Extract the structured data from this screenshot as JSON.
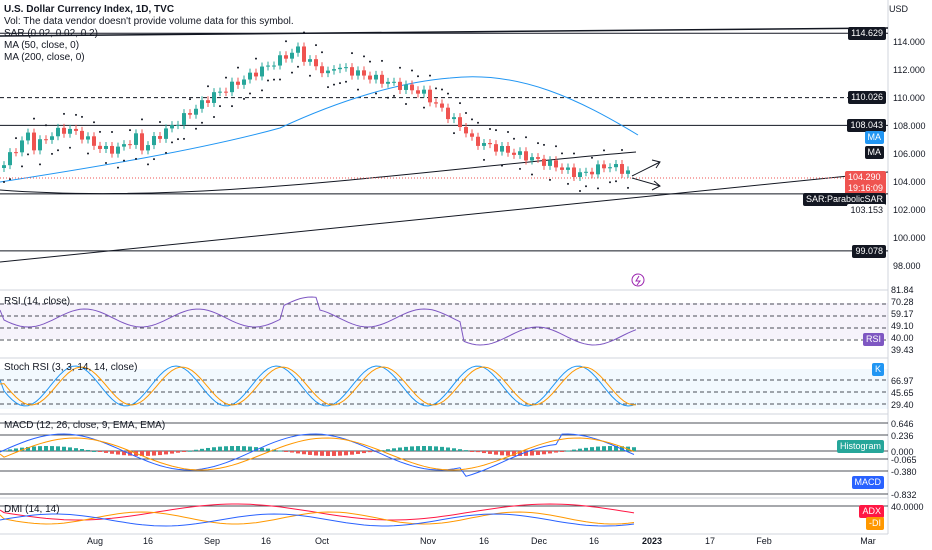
{
  "header": {
    "title": "U.S. Dollar Currency Index, 1D, TVC",
    "vol_note": "Vol: The data vendor doesn't provide volume data for this symbol.",
    "sar_label": "SAR (0.02, 0.02, 0.2)",
    "ma50_label": "MA (50, close, 0)",
    "ma200_label": "MA (200, close, 0)",
    "currency": "USD"
  },
  "price_axis": {
    "ticks": [
      "114.000",
      "112.000",
      "110.000",
      "108.000",
      "106.000",
      "104.000",
      "102.000",
      "100.000",
      "98.000"
    ],
    "marked": [
      {
        "name": "line-114629",
        "text": "114.629"
      },
      {
        "name": "line-110026",
        "text": "110.026"
      },
      {
        "name": "line-108043",
        "text": "108.043"
      },
      {
        "name": "line-103153",
        "text": "103.153"
      },
      {
        "name": "line-99078",
        "text": "99.078"
      }
    ],
    "last_price": "104.290",
    "countdown": "19:16:09",
    "ma_tag": "MA",
    "ma_tag_blue": "MA",
    "sar_tag": "SAR:ParabolicSAR"
  },
  "rsi": {
    "label": "RSI (14, close)",
    "levels": [
      "81.84",
      "70.28",
      "59.17",
      "49.10",
      "40.00",
      "39.43"
    ],
    "tag": "RSI"
  },
  "stoch": {
    "label": "Stoch RSI (3, 3, 14, 14, close)",
    "levels": [
      "66.97",
      "45.65",
      "29.40"
    ],
    "tag": "K"
  },
  "macd": {
    "label": "MACD (12, 26, close, 9, EMA, EMA)",
    "levels": [
      "0.646",
      "0.236",
      "0.000",
      "-0.065",
      "-0.380",
      "-0.832"
    ],
    "histogram_tag": "Histogram",
    "macd_tag": "MACD"
  },
  "dmi": {
    "label": "DMI (14, 14)",
    "level": "40.0000",
    "adx_tag": "ADX",
    "di_tag": "-DI"
  },
  "time_axis": [
    "Aug",
    "16",
    "Sep",
    "16",
    "Oct",
    "Nov",
    "16",
    "Dec",
    "16",
    "2023",
    "17",
    "Feb",
    "Mar"
  ],
  "colors": {
    "up": "#26a69a",
    "down": "#ef5350",
    "ma50": "#2196f3",
    "sar": "#131722",
    "rsi": "#7e57c2"
  }
}
